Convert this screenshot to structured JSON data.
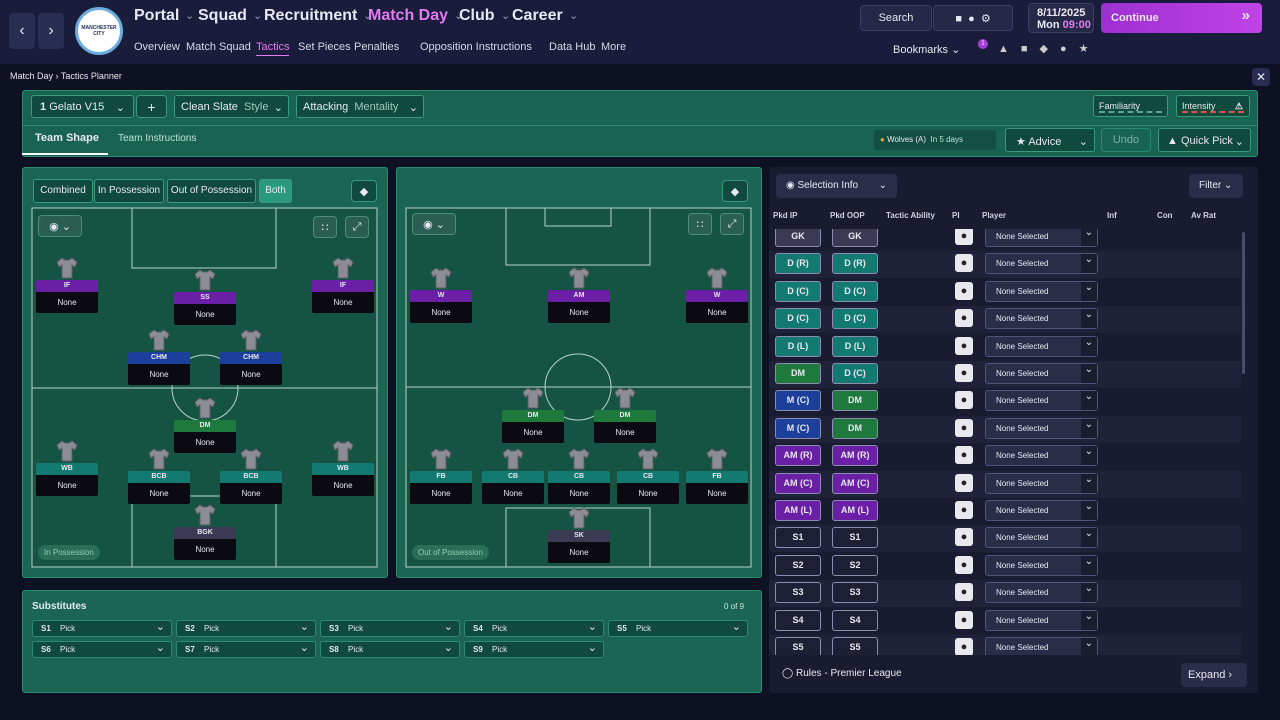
{
  "nav": {
    "main": [
      "Portal",
      "Squad",
      "Recruitment",
      "Match Day",
      "Club",
      "Career"
    ],
    "sub": [
      "Overview",
      "Match Squad",
      "Tactics",
      "Set Pieces",
      "Penalties",
      "Opposition Instructions",
      "Data Hub",
      "More"
    ],
    "search": "Search",
    "date": "8/11/2025",
    "day": "Mon",
    "time": "09:00",
    "continue": "Continue",
    "bookmarks": "Bookmarks",
    "badge_count": "1",
    "club_badge": "MANCHESTER CITY"
  },
  "breadcrumb": [
    "Match Day",
    "Tactics Planner"
  ],
  "toolbar": {
    "slot": "1",
    "tactic": "Gelato V15",
    "style_value": "Clean Slate",
    "style_label": "Style",
    "mentality_value": "Attacking",
    "mentality_label": "Mentality",
    "familiarity": "Familiarity",
    "intensity": "Intensity"
  },
  "tabs": [
    "Team Shape",
    "Team Instructions"
  ],
  "match": {
    "opponent": "Wolves (A)",
    "when": "In 5 days",
    "advice": "Advice",
    "undo": "Undo",
    "quick_pick": "Quick Pick"
  },
  "pitch_modes": [
    "Combined",
    "In Possession",
    "Out of Possession",
    "Both"
  ],
  "pitches": [
    {
      "label": "In Possession",
      "players": [
        {
          "role": "IF",
          "name": "None",
          "color": "#6b1fa6"
        },
        {
          "role": "SS",
          "name": "None",
          "color": "#6b1fa6"
        },
        {
          "role": "IF",
          "name": "None",
          "color": "#6b1fa6"
        },
        {
          "role": "CHM",
          "name": "None",
          "color": "#1c3f9c"
        },
        {
          "role": "CHM",
          "name": "None",
          "color": "#1c3f9c"
        },
        {
          "role": "DM",
          "name": "None",
          "color": "#1e7a3c"
        },
        {
          "role": "WB",
          "name": "None",
          "color": "#137a72"
        },
        {
          "role": "BCB",
          "name": "None",
          "color": "#137a72"
        },
        {
          "role": "BCB",
          "name": "None",
          "color": "#137a72"
        },
        {
          "role": "WB",
          "name": "None",
          "color": "#137a72"
        },
        {
          "role": "BGK",
          "name": "None",
          "color": "#3b3a55"
        }
      ]
    },
    {
      "label": "Out of Possession",
      "players": [
        {
          "role": "W",
          "name": "None",
          "color": "#6b1fa6"
        },
        {
          "role": "AM",
          "name": "None",
          "color": "#6b1fa6"
        },
        {
          "role": "W",
          "name": "None",
          "color": "#6b1fa6"
        },
        {
          "role": "DM",
          "name": "None",
          "color": "#1e7a3c"
        },
        {
          "role": "DM",
          "name": "None",
          "color": "#1e7a3c"
        },
        {
          "role": "FB",
          "name": "None",
          "color": "#137a72"
        },
        {
          "role": "CB",
          "name": "None",
          "color": "#137a72"
        },
        {
          "role": "CB",
          "name": "None",
          "color": "#137a72"
        },
        {
          "role": "CB",
          "name": "None",
          "color": "#137a72"
        },
        {
          "role": "FB",
          "name": "None",
          "color": "#137a72"
        },
        {
          "role": "SK",
          "name": "None",
          "color": "#3b3a55"
        }
      ]
    }
  ],
  "substitutes": {
    "title": "Substitutes",
    "count": "0 of 9",
    "slots": [
      {
        "slot": "S1",
        "pick": "Pick"
      },
      {
        "slot": "S2",
        "pick": "Pick"
      },
      {
        "slot": "S3",
        "pick": "Pick"
      },
      {
        "slot": "S4",
        "pick": "Pick"
      },
      {
        "slot": "S5",
        "pick": "Pick"
      },
      {
        "slot": "S6",
        "pick": "Pick"
      },
      {
        "slot": "S7",
        "pick": "Pick"
      },
      {
        "slot": "S8",
        "pick": "Pick"
      },
      {
        "slot": "S9",
        "pick": "Pick"
      }
    ]
  },
  "selection": {
    "title": "Selection Info",
    "filter": "Filter",
    "columns": [
      "Pkd IP",
      "Pkd OOP",
      "Tactic Ability",
      "PI",
      "Player",
      "Inf",
      "Con",
      "Av Rat"
    ],
    "rows": [
      {
        "ip": "GK",
        "ip_color": "#3b3a55",
        "oop": "GK",
        "oop_color": "#3b3a55",
        "player": "None Selected"
      },
      {
        "ip": "D (R)",
        "ip_color": "#137a72",
        "oop": "D (R)",
        "oop_color": "#137a72",
        "player": "None Selected"
      },
      {
        "ip": "D (C)",
        "ip_color": "#137a72",
        "oop": "D (C)",
        "oop_color": "#137a72",
        "player": "None Selected"
      },
      {
        "ip": "D (C)",
        "ip_color": "#137a72",
        "oop": "D (C)",
        "oop_color": "#137a72",
        "player": "None Selected"
      },
      {
        "ip": "D (L)",
        "ip_color": "#137a72",
        "oop": "D (L)",
        "oop_color": "#137a72",
        "player": "None Selected"
      },
      {
        "ip": "DM",
        "ip_color": "#1e7a3c",
        "oop": "D (C)",
        "oop_color": "#137a72",
        "player": "None Selected"
      },
      {
        "ip": "M (C)",
        "ip_color": "#1c3f9c",
        "oop": "DM",
        "oop_color": "#1e7a3c",
        "player": "None Selected"
      },
      {
        "ip": "M (C)",
        "ip_color": "#1c3f9c",
        "oop": "DM",
        "oop_color": "#1e7a3c",
        "player": "None Selected"
      },
      {
        "ip": "AM (R)",
        "ip_color": "#6b1fa6",
        "oop": "AM (R)",
        "oop_color": "#6b1fa6",
        "player": "None Selected"
      },
      {
        "ip": "AM (C)",
        "ip_color": "#6b1fa6",
        "oop": "AM (C)",
        "oop_color": "#6b1fa6",
        "player": "None Selected"
      },
      {
        "ip": "AM (L)",
        "ip_color": "#6b1fa6",
        "oop": "AM (L)",
        "oop_color": "#6b1fa6",
        "player": "None Selected"
      },
      {
        "ip": "S1",
        "ip_color": "#1d2035",
        "oop": "S1",
        "oop_color": "#1d2035",
        "player": "None Selected"
      },
      {
        "ip": "S2",
        "ip_color": "#1d2035",
        "oop": "S2",
        "oop_color": "#1d2035",
        "player": "None Selected"
      },
      {
        "ip": "S3",
        "ip_color": "#1d2035",
        "oop": "S3",
        "oop_color": "#1d2035",
        "player": "None Selected"
      },
      {
        "ip": "S4",
        "ip_color": "#1d2035",
        "oop": "S4",
        "oop_color": "#1d2035",
        "player": "None Selected"
      },
      {
        "ip": "S5",
        "ip_color": "#1d2035",
        "oop": "S5",
        "oop_color": "#1d2035",
        "player": "None Selected"
      }
    ],
    "rules": "Rules - Premier League",
    "expand": "Expand"
  }
}
